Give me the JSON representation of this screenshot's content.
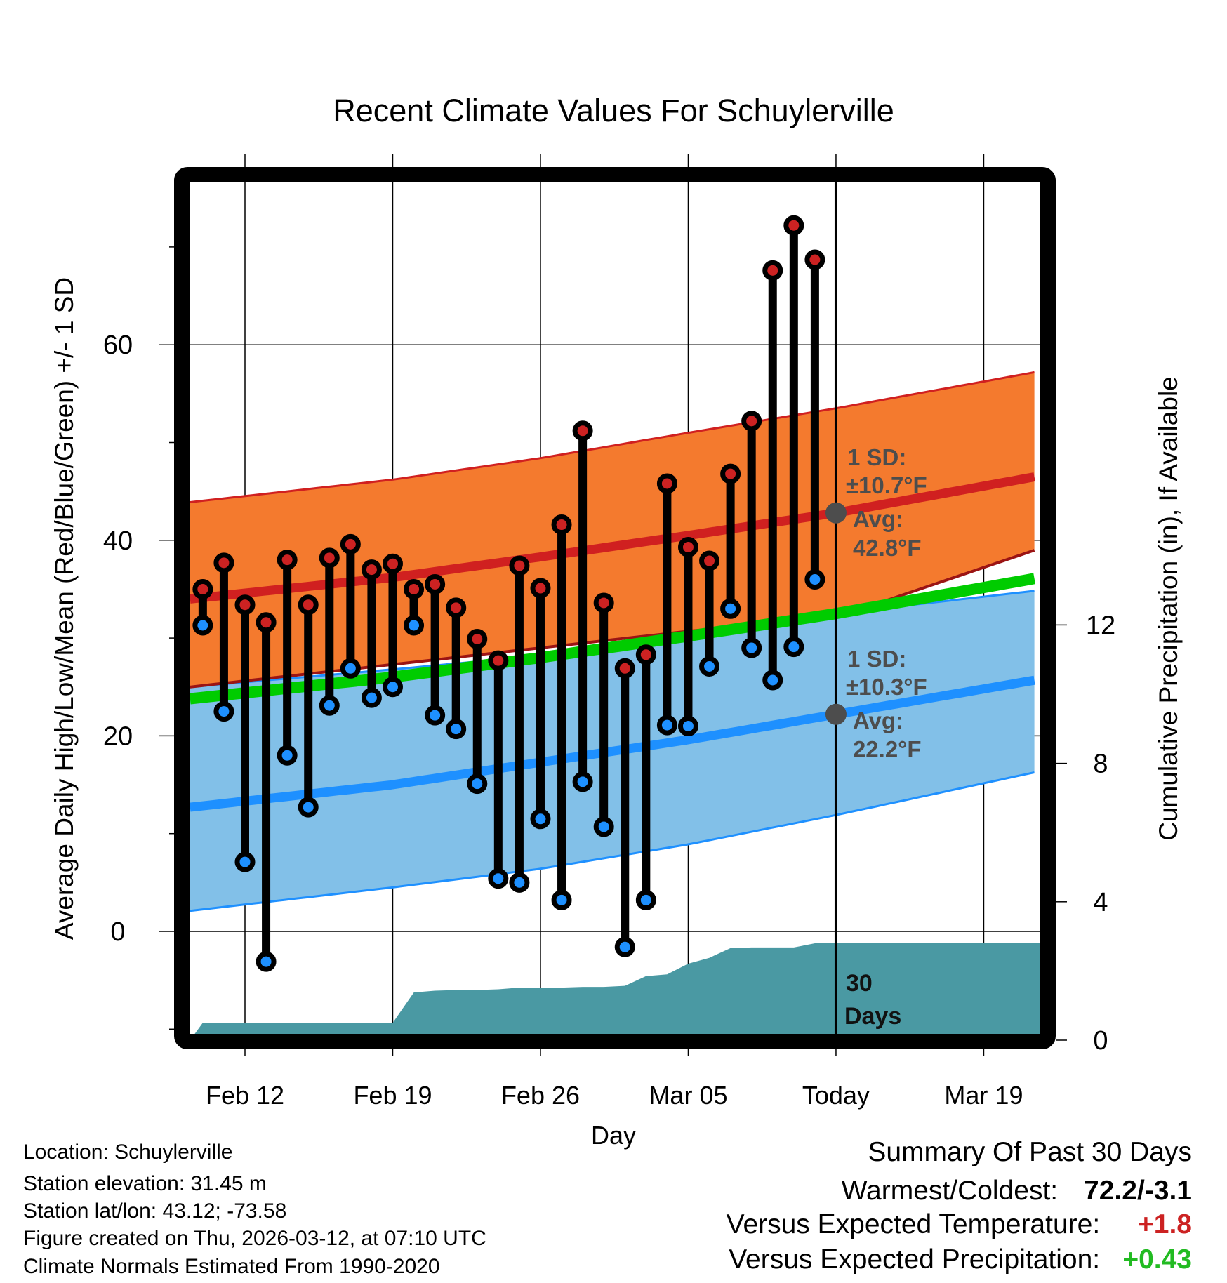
{
  "chart_data": {
    "type": "line",
    "title": "Recent Climate Values For Schuylerville",
    "xlabel": "Day",
    "ylabel": "Average Daily High/Low/Mean (Red/Blue/Green) +/- 1 SD",
    "y2label": "Cumulative Precipitation (in), If Available",
    "ylim": [
      -10.5,
      76.6
    ],
    "y2lim": [
      0,
      12
    ],
    "yticks": [
      0,
      20,
      40,
      60
    ],
    "y2ticks": [
      0,
      4,
      8,
      12
    ],
    "xtick_labels": [
      "Feb 12",
      "Feb 19",
      "Feb 26",
      "Mar 05",
      "Today",
      "Mar 19"
    ],
    "grid": true,
    "x_day_offsets_note": "days relative to Feb 12",
    "xlim_days": [
      -2.6,
      37.7
    ],
    "today_day": 28,
    "window_label": [
      "30",
      "Days"
    ],
    "observed": {
      "dates": [
        "Feb 10",
        "Feb 11",
        "Feb 12",
        "Feb 13",
        "Feb 14",
        "Feb 15",
        "Feb 16",
        "Feb 17",
        "Feb 18",
        "Feb 19",
        "Feb 20",
        "Feb 21",
        "Feb 22",
        "Feb 23",
        "Feb 24",
        "Feb 25",
        "Feb 26",
        "Feb 27",
        "Feb 28",
        "Mar 01",
        "Mar 02",
        "Mar 03",
        "Mar 04",
        "Mar 05",
        "Mar 06",
        "Mar 07",
        "Mar 08",
        "Mar 09",
        "Mar 10",
        "Mar 11"
      ],
      "day": [
        -2,
        -1,
        0,
        1,
        2,
        3,
        4,
        5,
        6,
        7,
        8,
        9,
        10,
        11,
        12,
        13,
        14,
        15,
        16,
        17,
        18,
        19,
        20,
        21,
        22,
        23,
        24,
        25,
        26,
        27
      ],
      "high": [
        35.0,
        37.7,
        33.4,
        31.6,
        38.0,
        33.4,
        38.2,
        39.6,
        37.0,
        37.6,
        35.0,
        35.5,
        33.1,
        29.9,
        27.7,
        37.4,
        35.1,
        41.6,
        51.2,
        33.6,
        26.9,
        28.3,
        45.8,
        39.3,
        37.9,
        46.8,
        52.2,
        67.6,
        72.2,
        68.7
      ],
      "low": [
        31.3,
        22.5,
        7.1,
        -3.1,
        18.0,
        12.7,
        23.1,
        26.9,
        23.9,
        25.0,
        31.3,
        22.1,
        20.7,
        15.1,
        5.4,
        5.0,
        11.5,
        3.2,
        15.3,
        10.7,
        -1.6,
        3.2,
        21.1,
        21.0,
        27.1,
        33.0,
        29.0,
        25.7,
        29.1,
        36.0
      ]
    },
    "normals": {
      "day": [
        -2.6,
        7,
        14,
        21,
        28,
        37.7
      ],
      "high_upper": [
        43.9,
        46.2,
        48.4,
        51.0,
        53.5,
        57.3
      ],
      "high_mean": [
        34.0,
        36.2,
        38.3,
        40.5,
        42.8,
        46.6
      ],
      "high_lower": [
        25.0,
        27.3,
        29.0,
        30.7,
        32.1,
        39.2
      ],
      "mean": [
        23.8,
        26.0,
        28.0,
        30.2,
        32.5,
        36.2
      ],
      "low_upper": [
        25.0,
        26.8,
        28.2,
        30.1,
        32.5,
        34.9
      ],
      "low_mean": [
        12.7,
        15.0,
        17.3,
        19.6,
        22.2,
        25.8
      ],
      "low_lower": [
        2.1,
        4.5,
        6.4,
        8.9,
        11.9,
        16.4
      ]
    },
    "precipitation": {
      "day": [
        -2.6,
        -2,
        -1,
        0,
        1,
        2,
        3,
        4,
        5,
        6,
        7,
        8,
        9,
        10,
        11,
        12,
        13,
        14,
        15,
        16,
        17,
        18,
        19,
        20,
        21,
        22,
        23,
        24,
        25,
        26,
        27,
        37.7
      ],
      "cumulative_in": [
        0,
        0.5,
        0.5,
        0.5,
        0.5,
        0.5,
        0.5,
        0.5,
        0.5,
        0.5,
        0.5,
        1.38,
        1.43,
        1.45,
        1.45,
        1.47,
        1.52,
        1.52,
        1.52,
        1.54,
        1.54,
        1.57,
        1.85,
        1.9,
        2.21,
        2.38,
        2.66,
        2.68,
        2.68,
        2.68,
        2.8,
        2.8
      ]
    },
    "annotations": {
      "high": {
        "sd_label": "1 SD:",
        "sd_value": "±10.7°F",
        "avg_label": "Avg:",
        "avg_value": "42.8°F",
        "avg": 42.8
      },
      "low": {
        "sd_label": "1 SD:",
        "sd_value": "±10.3°F",
        "avg_label": "Avg:",
        "avg_value": "22.2°F",
        "avg": 22.2
      }
    },
    "colors": {
      "high_band": "#f47a2e",
      "high_line": "#d02020",
      "low_band": "#82c0e8",
      "low_line": "#1e90ff",
      "mean_line": "#00cc00",
      "precip": "#4a99a3",
      "high_marker": "#cc2222",
      "low_marker": "#1e90ff",
      "annotation": "#4d4d4d"
    }
  },
  "footer": {
    "location": "Location: Schuylerville",
    "elevation": "Station elevation: 31.45 m",
    "latlon": "Station lat/lon: 43.12; -73.58",
    "created": "Figure created on Thu, 2026-03-12, at 07:10 UTC",
    "normals": "Climate Normals Estimated From 1990-2020"
  },
  "summary": {
    "title": "Summary Of Past 30 Days",
    "warmest_coldest_label": "Warmest/Coldest:",
    "warmest_coldest_value": "72.2/-3.1",
    "temp_label": "Versus Expected Temperature:",
    "temp_value": "+1.8",
    "temp_color": "#cc2222",
    "precip_label": "Versus Expected Precipitation:",
    "precip_value": "+0.43",
    "precip_color": "#22bb22"
  }
}
